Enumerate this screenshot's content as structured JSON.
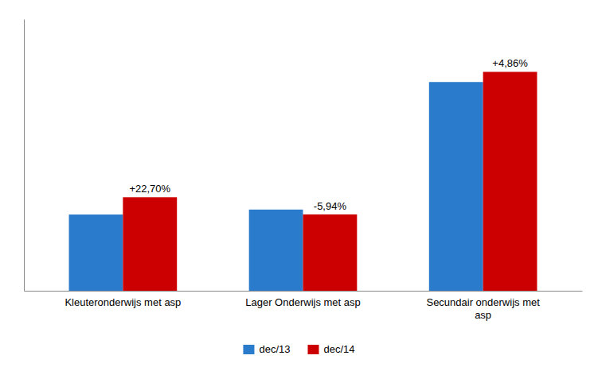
{
  "chart_data": {
    "type": "bar",
    "categories": [
      "Kleuteronderwijs met asp",
      "Lager Onderwijs met asp",
      "Secundair onderwijs met\nasp"
    ],
    "series": [
      {
        "name": "dec/13",
        "color": "#2B7BCC",
        "values": [
          230,
          245,
          630
        ]
      },
      {
        "name": "dec/14",
        "color": "#CC0000",
        "values": [
          282.21,
          230.44,
          660.64
        ],
        "annotations": [
          "+22,70%",
          "-5,94%",
          "+4,86%"
        ]
      }
    ],
    "ylim": [
      0,
      820
    ],
    "grid": false,
    "legend": "bottom",
    "tick_labels": "x"
  }
}
